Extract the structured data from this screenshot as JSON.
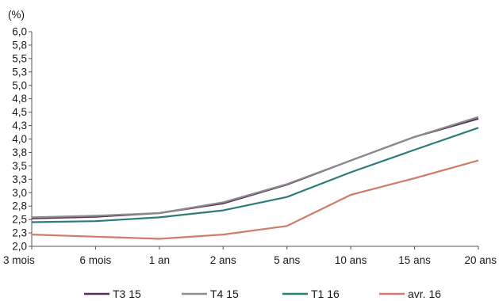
{
  "chart_data": {
    "type": "line",
    "unit_label": "(%)",
    "xlabel": "",
    "ylabel": "",
    "categories": [
      "3 mois",
      "6 mois",
      "1 an",
      "2 ans",
      "5 ans",
      "10 ans",
      "15 ans",
      "20 ans"
    ],
    "yticks": [
      "6,0",
      "5,8",
      "5,5",
      "5,3",
      "5,0",
      "4,8",
      "4,5",
      "4,3",
      "4,0",
      "3,8",
      "3,5",
      "3,3",
      "3,0",
      "2,8",
      "2,5",
      "2,3",
      "2,0"
    ],
    "ylim": [
      2.0,
      6.0
    ],
    "grid": false,
    "legend_position": "bottom",
    "series": [
      {
        "name": "T3 15",
        "color": "#5b2a5e",
        "values": [
          2.52,
          2.55,
          2.62,
          2.8,
          3.15,
          3.6,
          4.04,
          4.38
        ]
      },
      {
        "name": "T4 15",
        "color": "#8c8c8c",
        "values": [
          2.54,
          2.57,
          2.62,
          2.82,
          3.16,
          3.6,
          4.04,
          4.41
        ]
      },
      {
        "name": "T1 16",
        "color": "#2e7b7b",
        "values": [
          2.45,
          2.47,
          2.54,
          2.67,
          2.92,
          3.38,
          3.8,
          4.21
        ]
      },
      {
        "name": "avr. 16",
        "color": "#cf7c6a",
        "values": [
          2.22,
          2.18,
          2.14,
          2.22,
          2.38,
          2.96,
          3.27,
          3.6
        ]
      }
    ]
  }
}
